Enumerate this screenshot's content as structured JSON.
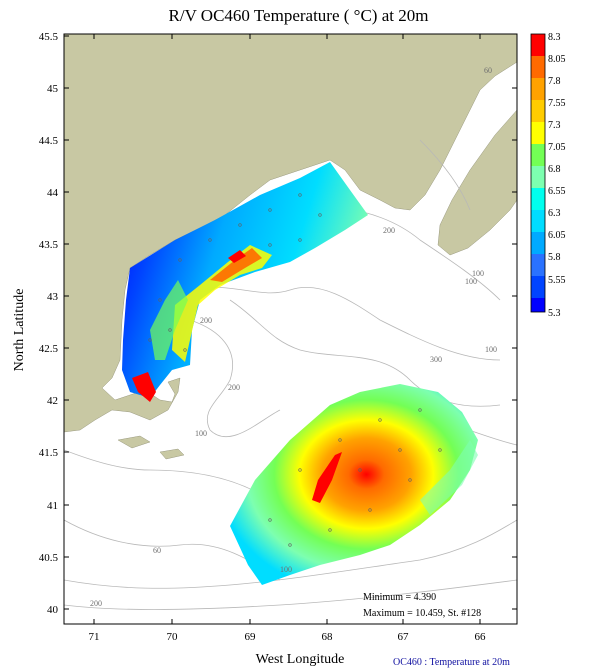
{
  "title": "R/V OC460 Temperature ( °C) at 20m",
  "x_axis_label": "West Longitude",
  "y_axis_label": "North Latitude",
  "lon_ticks": [
    "71",
    "70",
    "69",
    "68",
    "67",
    "66"
  ],
  "lat_ticks": [
    "45.5",
    "45",
    "44.5",
    "44",
    "43.5",
    "43",
    "42.5",
    "42",
    "41.5",
    "41",
    "40.5",
    "40"
  ],
  "colorbar": {
    "labels": [
      "8.3",
      "8.05",
      "7.8",
      "7.55",
      "7.3",
      "7.05",
      "6.8",
      "6.55",
      "6.3",
      "6.05",
      "5.8",
      "5.55",
      "5.3"
    ],
    "colors": [
      "#ff0000",
      "#ff6a00",
      "#ffa200",
      "#ffcc00",
      "#ffff00",
      "#73ff55",
      "#7dffb0",
      "#00ffee",
      "#00ddff",
      "#00aaff",
      "#2a72ff",
      "#0044ff",
      "#0000ff"
    ]
  },
  "depth_labels": [
    "60",
    "100",
    "200",
    "200",
    "200",
    "300",
    "100",
    "100",
    "60",
    "100",
    "200",
    "100"
  ],
  "stats": {
    "minimum": "Minimum = 4.390",
    "maximum": "Maximum = 10.459, St. #128"
  },
  "caption": "OC460 : Temperature at 20m",
  "land_color": "#c8c8a3",
  "contour_color": "#b8b8b8"
}
